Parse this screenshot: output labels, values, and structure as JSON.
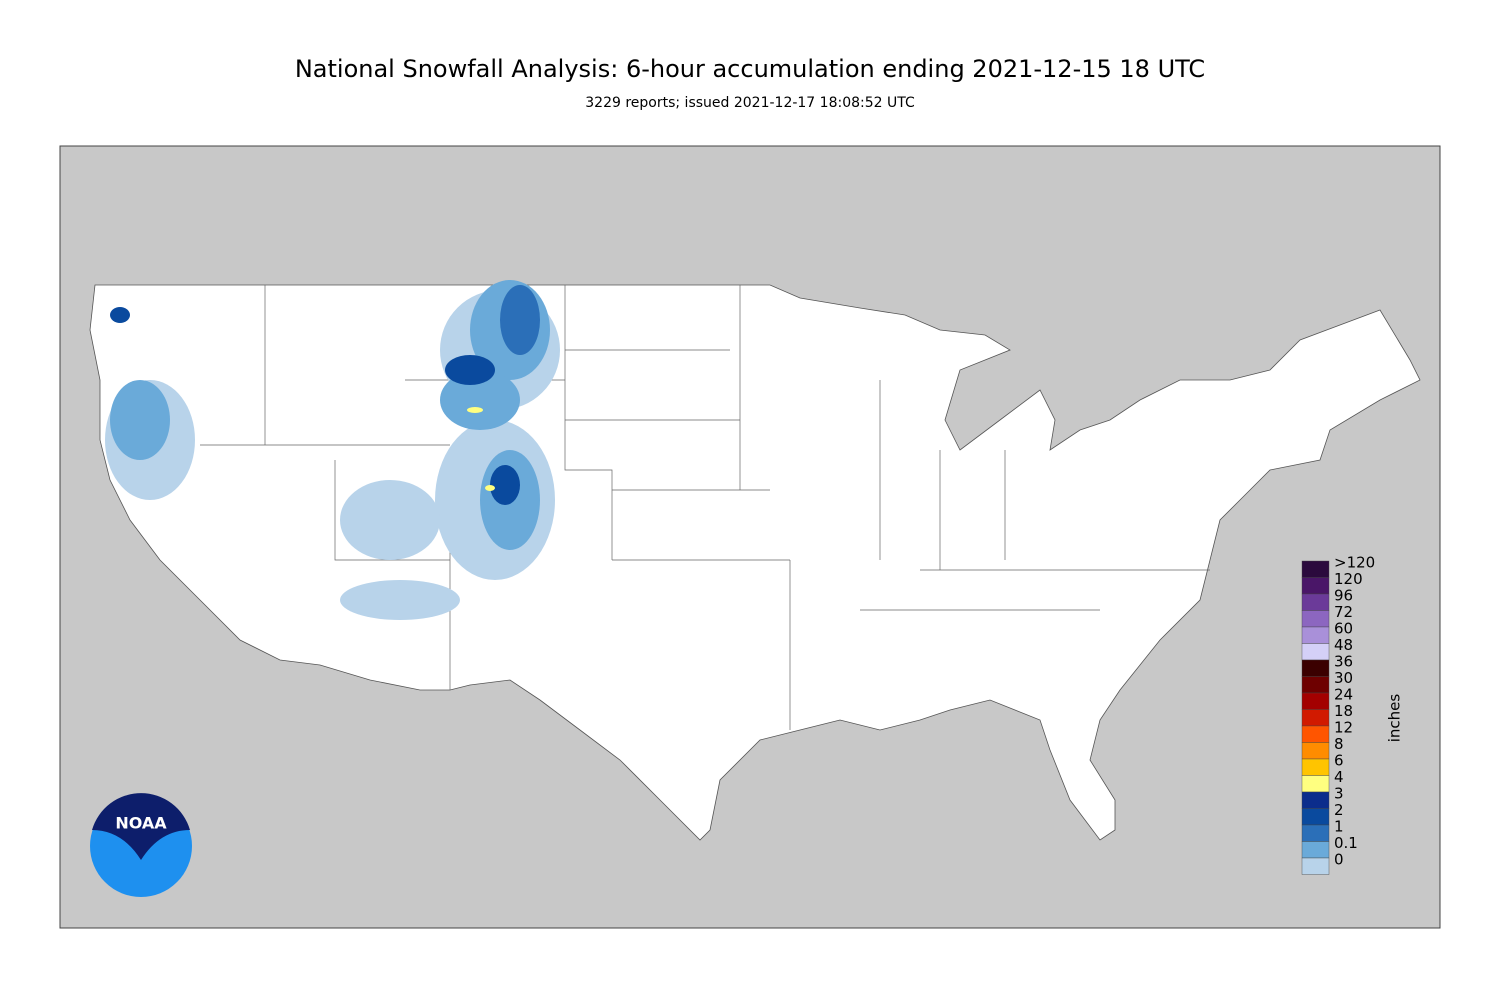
{
  "header": {
    "title": "National Snowfall Analysis: 6-hour accumulation ending 2021-12-15 18 UTC",
    "subtitle": "3229 reports; issued 2021-12-17 18:08:52 UTC"
  },
  "legend": {
    "unit": "inches",
    "levels": [
      {
        "label": ">120",
        "color": "#2b0a3d"
      },
      {
        "label": "120",
        "color": "#4a1668"
      },
      {
        "label": "96",
        "color": "#6b3a99"
      },
      {
        "label": "72",
        "color": "#8c66c0"
      },
      {
        "label": "60",
        "color": "#a990d9"
      },
      {
        "label": "48",
        "color": "#d4d0f7"
      },
      {
        "label": "36",
        "color": "#3b0000"
      },
      {
        "label": "30",
        "color": "#6e0000"
      },
      {
        "label": "24",
        "color": "#a30000"
      },
      {
        "label": "18",
        "color": "#d11a00"
      },
      {
        "label": "12",
        "color": "#ff5500"
      },
      {
        "label": "8",
        "color": "#ff8c00"
      },
      {
        "label": "6",
        "color": "#ffc400"
      },
      {
        "label": "4",
        "color": "#ffff80"
      },
      {
        "label": "3",
        "color": "#0b2d8c"
      },
      {
        "label": "2",
        "color": "#0a4a9e"
      },
      {
        "label": "1",
        "color": "#2b6fb8"
      },
      {
        "label": "0.1",
        "color": "#6aaad9"
      },
      {
        "label": "0",
        "color": "#b8d3ea"
      }
    ]
  },
  "logo": {
    "text": "NOAA"
  }
}
